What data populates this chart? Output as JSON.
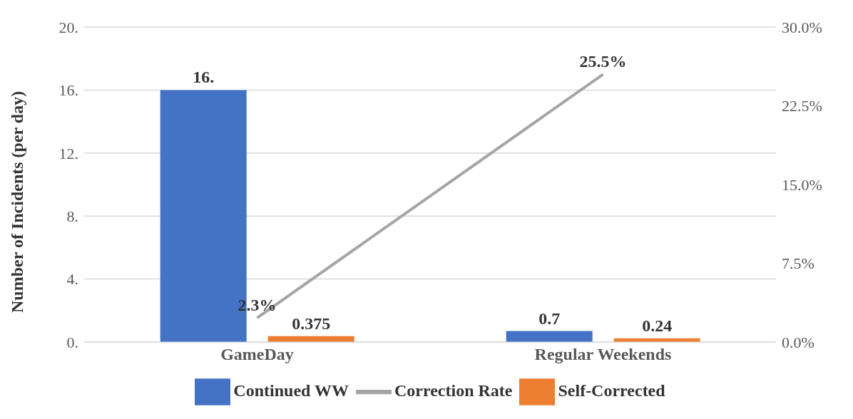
{
  "chart_data": {
    "type": "bar",
    "categories": [
      "GameDay",
      "Regular Weekends"
    ],
    "ylabel": "Number of Incidents (per day)",
    "series": [
      {
        "name": "Continued WW",
        "color": "#4472c4",
        "values": [
          16,
          0.7
        ],
        "value_labels": [
          "16.",
          "0.7"
        ]
      },
      {
        "name": "Self-Corrected",
        "color": "#ed7d31",
        "values": [
          0.375,
          0.24
        ],
        "value_labels": [
          "0.375",
          "0.24"
        ]
      },
      {
        "name": "Correction Rate",
        "type": "line",
        "axis": "y2",
        "color": "#a5a5a5",
        "values": [
          2.3,
          25.5
        ],
        "value_labels": [
          "2.3%",
          "25.5%"
        ]
      }
    ],
    "ylim": [
      0,
      20
    ],
    "yticks": [
      {
        "value": 0,
        "label": "0."
      },
      {
        "value": 4,
        "label": "4."
      },
      {
        "value": 8,
        "label": "8."
      },
      {
        "value": 12,
        "label": "12."
      },
      {
        "value": 16,
        "label": "16."
      },
      {
        "value": 20,
        "label": "20."
      }
    ],
    "y2lim": [
      0,
      30
    ],
    "y2ticks": [
      {
        "value": 0,
        "label": "0.0%"
      },
      {
        "value": 7.5,
        "label": "7.5%"
      },
      {
        "value": 15,
        "label": "15.0%"
      },
      {
        "value": 22.5,
        "label": "22.5%"
      },
      {
        "value": 30,
        "label": "30.0%"
      }
    ],
    "grid": "y",
    "legend": "bottom",
    "marker": "none",
    "line_style": "solid"
  }
}
